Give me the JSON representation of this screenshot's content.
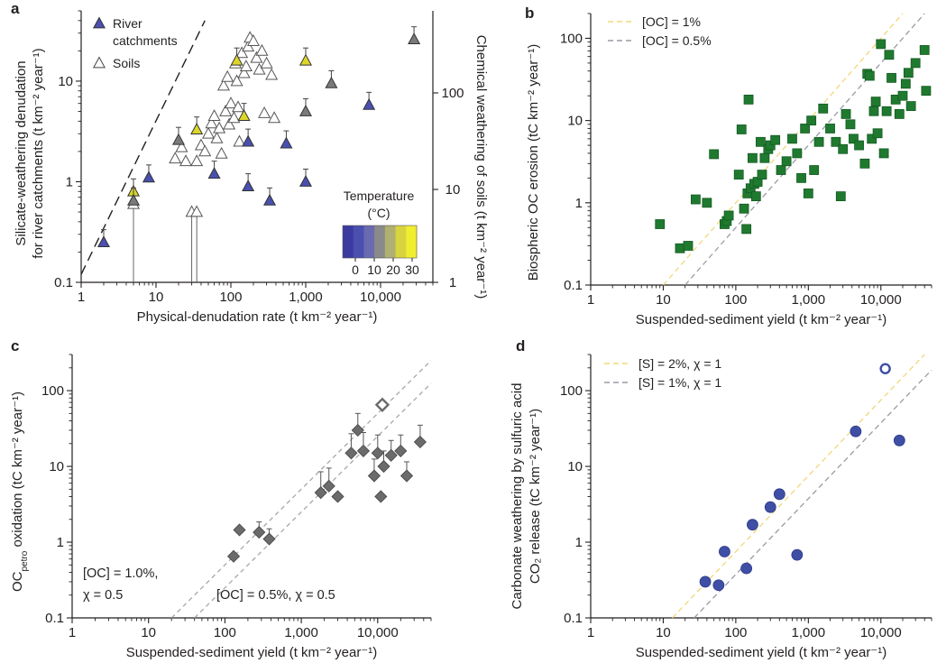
{
  "panels": {
    "a": "a",
    "b": "b",
    "c": "c",
    "d": "d"
  },
  "colors": {
    "axis": "#231f20",
    "river_gray": "#7a7a7a",
    "river_blue": "#4a4fb0",
    "river_yellow": "#dcd62a",
    "soil_fill": "#ffffff",
    "green_square": "#1f7a30",
    "diamond": "#6b6b6b",
    "blue_circle": "#3f4fa6",
    "line_yellow": "#f2d77a",
    "line_gray": "#9a9aa6",
    "colorbar": [
      "#3a3aa0",
      "#4a4fb0",
      "#6a6ab0",
      "#8a8a8a",
      "#b0b070",
      "#d8d440",
      "#f0ee30"
    ]
  },
  "chart_data": [
    {
      "id": "a",
      "type": "scatter",
      "xscale": "log",
      "yscale": "log",
      "xlim": [
        1,
        50000
      ],
      "ylim": [
        0.1,
        50
      ],
      "xticks": [
        "1",
        "10",
        "100",
        "1,000",
        "10,000"
      ],
      "yticks": [
        "0.1",
        "1",
        "10"
      ],
      "xlabel": "Physical-denudation rate (t km⁻² year⁻¹)",
      "ylabel_line1": "Silicate-weathering denudation",
      "ylabel_line2": "for river catchments (t km⁻² year⁻¹)",
      "y2label": "Chemical weathering of soils (t km⁻² year⁻¹)",
      "y2ticks": [
        "1",
        "10",
        "100"
      ],
      "legend": {
        "river": "River",
        "river2": "catchments",
        "soils": "Soils"
      },
      "colorbar": {
        "title1": "Temperature",
        "title2": "(°C)",
        "ticks": [
          "0",
          "10",
          "20",
          "30"
        ]
      },
      "reference_line": {
        "x": [
          1,
          45
        ],
        "y": [
          0.12,
          40
        ]
      },
      "rivers": [
        {
          "x": 2,
          "y": 0.25,
          "color": "blue"
        },
        {
          "x": 5,
          "y": 0.8,
          "color": "yellow"
        },
        {
          "x": 5,
          "y": 0.65,
          "color": "gray"
        },
        {
          "x": 8,
          "y": 1.1,
          "color": "blue"
        },
        {
          "x": 20,
          "y": 2.6,
          "color": "gray"
        },
        {
          "x": 35,
          "y": 3.3,
          "color": "yellow"
        },
        {
          "x": 60,
          "y": 1.2,
          "color": "blue"
        },
        {
          "x": 120,
          "y": 16,
          "color": "yellow"
        },
        {
          "x": 150,
          "y": 4.5,
          "color": "yellow"
        },
        {
          "x": 170,
          "y": 2.5,
          "color": "blue"
        },
        {
          "x": 170,
          "y": 0.9,
          "color": "blue"
        },
        {
          "x": 330,
          "y": 0.65,
          "color": "blue"
        },
        {
          "x": 550,
          "y": 2.4,
          "color": "blue"
        },
        {
          "x": 1000,
          "y": 16,
          "color": "yellow"
        },
        {
          "x": 1000,
          "y": 5,
          "color": "gray"
        },
        {
          "x": 1000,
          "y": 1.0,
          "color": "blue"
        },
        {
          "x": 2200,
          "y": 9.5,
          "color": "gray"
        },
        {
          "x": 7000,
          "y": 5.8,
          "color": "blue"
        },
        {
          "x": 28000,
          "y": 26,
          "color": "gray"
        }
      ],
      "soils": [
        {
          "x": 5,
          "y": 0.6
        },
        {
          "x": 18,
          "y": 1.7
        },
        {
          "x": 22,
          "y": 2.2
        },
        {
          "x": 25,
          "y": 1.6
        },
        {
          "x": 30,
          "y": 0.5
        },
        {
          "x": 35,
          "y": 0.5
        },
        {
          "x": 35,
          "y": 1.6
        },
        {
          "x": 40,
          "y": 2.3
        },
        {
          "x": 45,
          "y": 2.0
        },
        {
          "x": 50,
          "y": 3.0
        },
        {
          "x": 55,
          "y": 3.8
        },
        {
          "x": 60,
          "y": 4.5
        },
        {
          "x": 65,
          "y": 2.7
        },
        {
          "x": 70,
          "y": 3.4
        },
        {
          "x": 75,
          "y": 1.9
        },
        {
          "x": 80,
          "y": 9.0
        },
        {
          "x": 85,
          "y": 5.0
        },
        {
          "x": 90,
          "y": 11
        },
        {
          "x": 95,
          "y": 3.7
        },
        {
          "x": 100,
          "y": 6.0
        },
        {
          "x": 110,
          "y": 4.3
        },
        {
          "x": 115,
          "y": 15
        },
        {
          "x": 120,
          "y": 10
        },
        {
          "x": 125,
          "y": 5.5
        },
        {
          "x": 130,
          "y": 2.5
        },
        {
          "x": 140,
          "y": 19
        },
        {
          "x": 150,
          "y": 12
        },
        {
          "x": 160,
          "y": 14
        },
        {
          "x": 170,
          "y": 22
        },
        {
          "x": 180,
          "y": 27
        },
        {
          "x": 200,
          "y": 25
        },
        {
          "x": 220,
          "y": 17
        },
        {
          "x": 240,
          "y": 13
        },
        {
          "x": 260,
          "y": 20
        },
        {
          "x": 300,
          "y": 15
        },
        {
          "x": 350,
          "y": 11.5
        },
        {
          "x": 280,
          "y": 4.8
        },
        {
          "x": 380,
          "y": 4.3
        }
      ]
    },
    {
      "id": "b",
      "type": "scatter",
      "xscale": "log",
      "yscale": "log",
      "xlim": [
        1,
        50000
      ],
      "ylim": [
        0.1,
        200
      ],
      "xticks": [
        "1",
        "10",
        "100",
        "1,000",
        "10,000"
      ],
      "yticks": [
        "0.1",
        "1",
        "10",
        "100"
      ],
      "xlabel": "Suspended-sediment yield (t km⁻² year⁻¹)",
      "ylabel": "Biospheric OC erosion (tC km⁻² year⁻¹)",
      "lines": [
        {
          "label": "[OC] = 1%",
          "color": "yellow",
          "fraction": 0.01
        },
        {
          "label": "[OC] = 0.5%",
          "color": "gray",
          "fraction": 0.005
        }
      ],
      "points": [
        {
          "x": 9,
          "y": 0.55
        },
        {
          "x": 17,
          "y": 0.28
        },
        {
          "x": 22,
          "y": 0.3
        },
        {
          "x": 28,
          "y": 1.1
        },
        {
          "x": 40,
          "y": 1.0
        },
        {
          "x": 50,
          "y": 3.9
        },
        {
          "x": 70,
          "y": 0.55
        },
        {
          "x": 75,
          "y": 0.6
        },
        {
          "x": 80,
          "y": 0.7
        },
        {
          "x": 110,
          "y": 2.2
        },
        {
          "x": 120,
          "y": 7.8
        },
        {
          "x": 130,
          "y": 0.85
        },
        {
          "x": 140,
          "y": 0.48
        },
        {
          "x": 145,
          "y": 1.3
        },
        {
          "x": 150,
          "y": 18
        },
        {
          "x": 160,
          "y": 1.5
        },
        {
          "x": 170,
          "y": 3.5
        },
        {
          "x": 180,
          "y": 1.7
        },
        {
          "x": 190,
          "y": 1.2
        },
        {
          "x": 200,
          "y": 1.8
        },
        {
          "x": 220,
          "y": 5.5
        },
        {
          "x": 230,
          "y": 2.2
        },
        {
          "x": 250,
          "y": 3.5
        },
        {
          "x": 280,
          "y": 4.5
        },
        {
          "x": 300,
          "y": 5.0
        },
        {
          "x": 350,
          "y": 5.8
        },
        {
          "x": 420,
          "y": 2.5
        },
        {
          "x": 500,
          "y": 3.2
        },
        {
          "x": 600,
          "y": 6.0
        },
        {
          "x": 700,
          "y": 4.0
        },
        {
          "x": 800,
          "y": 2.0
        },
        {
          "x": 900,
          "y": 8.0
        },
        {
          "x": 1000,
          "y": 1.3
        },
        {
          "x": 1100,
          "y": 10
        },
        {
          "x": 1200,
          "y": 2.5
        },
        {
          "x": 1400,
          "y": 5.5
        },
        {
          "x": 1600,
          "y": 14
        },
        {
          "x": 2000,
          "y": 8
        },
        {
          "x": 2400,
          "y": 5.5
        },
        {
          "x": 2800,
          "y": 1.2
        },
        {
          "x": 3000,
          "y": 4.5
        },
        {
          "x": 3300,
          "y": 12
        },
        {
          "x": 3800,
          "y": 9
        },
        {
          "x": 4200,
          "y": 6
        },
        {
          "x": 5000,
          "y": 5
        },
        {
          "x": 6000,
          "y": 3
        },
        {
          "x": 6500,
          "y": 37
        },
        {
          "x": 7000,
          "y": 35
        },
        {
          "x": 7500,
          "y": 6
        },
        {
          "x": 8000,
          "y": 13
        },
        {
          "x": 8500,
          "y": 17
        },
        {
          "x": 9000,
          "y": 7
        },
        {
          "x": 10000,
          "y": 85
        },
        {
          "x": 11000,
          "y": 4
        },
        {
          "x": 12000,
          "y": 13
        },
        {
          "x": 13000,
          "y": 63
        },
        {
          "x": 14000,
          "y": 33
        },
        {
          "x": 16000,
          "y": 18
        },
        {
          "x": 18000,
          "y": 12
        },
        {
          "x": 20000,
          "y": 20
        },
        {
          "x": 22000,
          "y": 28
        },
        {
          "x": 24000,
          "y": 38
        },
        {
          "x": 26000,
          "y": 15
        },
        {
          "x": 30000,
          "y": 50
        },
        {
          "x": 40000,
          "y": 72
        },
        {
          "x": 42000,
          "y": 23
        }
      ]
    },
    {
      "id": "c",
      "type": "scatter",
      "xscale": "log",
      "yscale": "log",
      "xlim": [
        1,
        50000
      ],
      "ylim": [
        0.1,
        300
      ],
      "xticks": [
        "1",
        "10",
        "100",
        "1,000",
        "10,000"
      ],
      "yticks": [
        "0.1",
        "1",
        "10",
        "100"
      ],
      "xlabel": "Suspended-sediment yield (t km⁻² year⁻¹)",
      "ylabel_pre": "OC",
      "ylabel_sub": "petro",
      "ylabel_post": " oxidation (tC km⁻² year⁻¹)",
      "annot1_line1": "[OC] = 1.0%,",
      "annot1_line2": "χ = 0.5",
      "annot2": "[OC] = 0.5%, χ = 0.5",
      "lines": [
        {
          "color": "gray",
          "fraction": 0.005
        },
        {
          "color": "gray",
          "fraction": 0.0025
        }
      ],
      "points": [
        {
          "x": 130,
          "y": 0.65,
          "err": 0
        },
        {
          "x": 155,
          "y": 1.45,
          "err": 0
        },
        {
          "x": 280,
          "y": 1.35,
          "err": 0.5
        },
        {
          "x": 380,
          "y": 1.1,
          "err": 0.4
        },
        {
          "x": 1800,
          "y": 4.5,
          "err": 4
        },
        {
          "x": 2300,
          "y": 5.5,
          "err": 4
        },
        {
          "x": 3000,
          "y": 4.0,
          "err": 0
        },
        {
          "x": 4500,
          "y": 15,
          "err": 12
        },
        {
          "x": 5500,
          "y": 30,
          "err": 20
        },
        {
          "x": 6500,
          "y": 16,
          "err": 12
        },
        {
          "x": 9000,
          "y": 7.5,
          "err": 5
        },
        {
          "x": 10000,
          "y": 15,
          "err": 11
        },
        {
          "x": 11000,
          "y": 4.0,
          "err": 0
        },
        {
          "x": 12000,
          "y": 10,
          "err": 6
        },
        {
          "x": 15000,
          "y": 14,
          "err": 8
        },
        {
          "x": 20000,
          "y": 16,
          "err": 10
        },
        {
          "x": 24000,
          "y": 7.5,
          "err": 4
        },
        {
          "x": 36000,
          "y": 21,
          "err": 14
        }
      ],
      "open_point": {
        "x": 11500,
        "y": 65
      }
    },
    {
      "id": "d",
      "type": "scatter",
      "xscale": "log",
      "yscale": "log",
      "xlim": [
        1,
        50000
      ],
      "ylim": [
        0.1,
        300
      ],
      "xticks": [
        "1",
        "10",
        "100",
        "1,000",
        "10,000"
      ],
      "yticks": [
        "0.1",
        "1",
        "10",
        "100"
      ],
      "xlabel": "Suspended-sediment yield (t km⁻² year⁻¹)",
      "ylabel_line1": "Carbonate weathering by sulfuric acid",
      "ylabel_line2": "CO₂ release (tC km⁻² year⁻¹)",
      "lines": [
        {
          "label": "[S] = 2%, χ = 1",
          "color": "yellow",
          "fraction": 0.0075
        },
        {
          "label": "[S] = 1%, χ = 1",
          "color": "gray",
          "fraction": 0.00375
        }
      ],
      "points": [
        {
          "x": 38,
          "y": 0.3
        },
        {
          "x": 58,
          "y": 0.27
        },
        {
          "x": 70,
          "y": 0.75
        },
        {
          "x": 140,
          "y": 0.45
        },
        {
          "x": 170,
          "y": 1.7
        },
        {
          "x": 300,
          "y": 2.9
        },
        {
          "x": 400,
          "y": 4.3
        },
        {
          "x": 700,
          "y": 0.68
        },
        {
          "x": 4500,
          "y": 29
        },
        {
          "x": 18000,
          "y": 22
        }
      ],
      "open_point": {
        "x": 11500,
        "y": 195
      }
    }
  ]
}
